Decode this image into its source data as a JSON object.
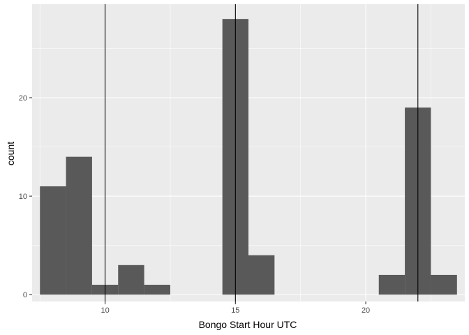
{
  "chart_data": {
    "type": "bar",
    "style": "histogram",
    "xlabel": "Bongo Start Hour UTC",
    "ylabel": "count",
    "xlim": [
      7.2,
      23.8
    ],
    "ylim": [
      -0.7,
      29.5
    ],
    "x_ticks": [
      10,
      15,
      20
    ],
    "y_ticks": [
      0,
      10,
      20
    ],
    "x_tick_labels": [
      "10",
      "15",
      "20"
    ],
    "y_tick_labels": [
      "0",
      "10",
      "20"
    ],
    "bins": [
      {
        "start": 7.5,
        "end": 8.5,
        "count": 11
      },
      {
        "start": 8.5,
        "end": 9.5,
        "count": 14
      },
      {
        "start": 9.5,
        "end": 10.5,
        "count": 1
      },
      {
        "start": 10.5,
        "end": 11.5,
        "count": 3
      },
      {
        "start": 11.5,
        "end": 12.5,
        "count": 1
      },
      {
        "start": 12.5,
        "end": 13.5,
        "count": 0
      },
      {
        "start": 13.5,
        "end": 14.5,
        "count": 0
      },
      {
        "start": 14.5,
        "end": 15.5,
        "count": 28
      },
      {
        "start": 15.5,
        "end": 16.5,
        "count": 4
      },
      {
        "start": 16.5,
        "end": 17.5,
        "count": 0
      },
      {
        "start": 17.5,
        "end": 18.5,
        "count": 0
      },
      {
        "start": 18.5,
        "end": 19.5,
        "count": 0
      },
      {
        "start": 19.5,
        "end": 20.5,
        "count": 0
      },
      {
        "start": 20.5,
        "end": 21.5,
        "count": 2
      },
      {
        "start": 21.5,
        "end": 22.5,
        "count": 19
      },
      {
        "start": 22.5,
        "end": 23.5,
        "count": 2
      }
    ],
    "vertical_lines": [
      10,
      15,
      22
    ],
    "grid": true,
    "colors": {
      "panel_background": "#EBEBEB",
      "grid": "#FFFFFF",
      "bar_fill": "#595959",
      "vline": "#000000",
      "tick_text": "#4D4D4D",
      "axis_title": "#000000"
    }
  }
}
